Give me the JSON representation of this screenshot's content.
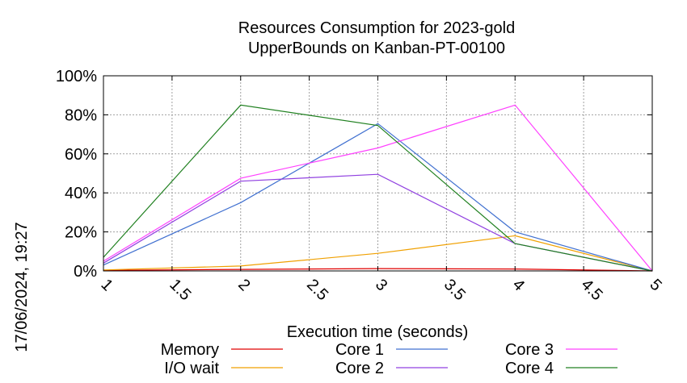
{
  "chart_data": {
    "type": "line",
    "title_lines": [
      "Resources Consumption for 2023-gold",
      "UpperBounds on Kanban-PT-00100"
    ],
    "xlabel": "Execution time (seconds)",
    "ylabel": "",
    "timestamp": "17/06/2024, 19:27",
    "xlim": [
      1,
      5
    ],
    "ylim": [
      0,
      100
    ],
    "x_ticks": [
      1,
      1.5,
      2,
      2.5,
      3,
      3.5,
      4,
      4.5,
      5
    ],
    "x_tick_labels": [
      "1",
      "1.5",
      "2",
      "2.5",
      "3",
      "3.5",
      "4",
      "4.5",
      "5"
    ],
    "y_ticks": [
      0,
      20,
      40,
      60,
      80,
      100
    ],
    "y_tick_labels": [
      "0%",
      "20%",
      "40%",
      "60%",
      "80%",
      "100%"
    ],
    "grid": true,
    "legend_position": "bottom",
    "series": [
      {
        "name": "Memory",
        "color": "#e00000",
        "x": [
          1,
          2,
          3,
          4,
          5
        ],
        "values": [
          0.3,
          0.8,
          1.2,
          1.0,
          0
        ]
      },
      {
        "name": "I/O wait",
        "color": "#f0a000",
        "x": [
          1,
          2,
          3,
          4,
          5
        ],
        "values": [
          0.5,
          2.5,
          9,
          18,
          0
        ]
      },
      {
        "name": "Core 1",
        "color": "#4070d0",
        "x": [
          1,
          2,
          3,
          4,
          5
        ],
        "values": [
          3,
          35,
          75.5,
          20,
          0
        ]
      },
      {
        "name": "Core 2",
        "color": "#9040e0",
        "x": [
          1,
          2,
          3,
          4,
          5
        ],
        "values": [
          4,
          46,
          49.5,
          14,
          0
        ]
      },
      {
        "name": "Core 3",
        "color": "#ff40ff",
        "x": [
          1,
          2,
          3,
          4,
          5
        ],
        "values": [
          5,
          47.5,
          63,
          85,
          0
        ]
      },
      {
        "name": "Core 4",
        "color": "#208020",
        "x": [
          1,
          2,
          3,
          4,
          5
        ],
        "values": [
          7,
          85,
          74.5,
          14,
          0
        ]
      }
    ]
  }
}
